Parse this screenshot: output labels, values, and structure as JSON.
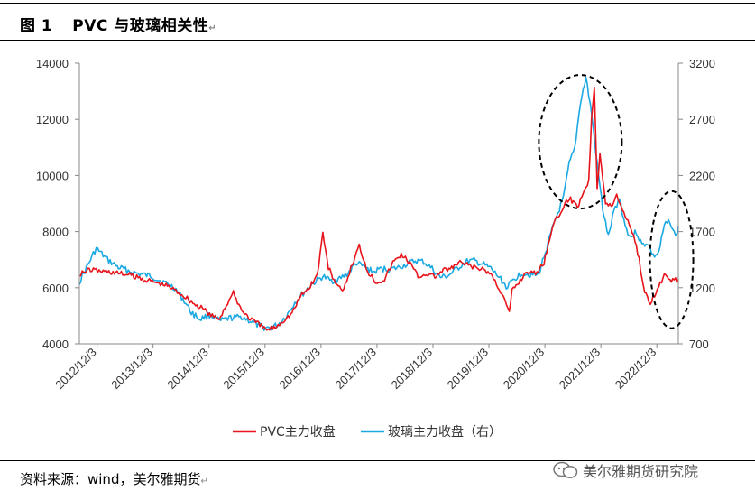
{
  "header": {
    "figure_label": "图 1",
    "title": "PVC 与玻璃相关性"
  },
  "footer": {
    "source": "资料来源：wind，美尔雅期货",
    "watermark": "美尔雅期货研究院"
  },
  "chart_data": {
    "type": "line",
    "title": "PVC 与玻璃相关性",
    "x_labels": [
      "2012/12/3",
      "2013/12/3",
      "2014/12/3",
      "2015/12/3",
      "2016/12/3",
      "2017/12/3",
      "2018/12/3",
      "2019/12/3",
      "2020/12/3",
      "2021/12/3",
      "2022/12/3"
    ],
    "x_range": [
      2012.6,
      2023.3
    ],
    "y_left": {
      "ticks": [
        4000,
        6000,
        8000,
        10000,
        12000,
        14000
      ],
      "range": [
        4000,
        14000
      ]
    },
    "y_right": {
      "ticks": [
        700,
        1200,
        1700,
        2200,
        2700,
        3200
      ],
      "range": [
        700,
        3200
      ]
    },
    "legend_position": "bottom",
    "colors": {
      "pvc": "#e8141b",
      "glass": "#1aa9e2"
    },
    "series": [
      {
        "name": "PVC主力收盘",
        "axis": "left",
        "x": [
          2012.6,
          2012.8,
          2012.95,
          2013.2,
          2013.5,
          2013.75,
          2013.95,
          2014.2,
          2014.4,
          2014.55,
          2014.7,
          2014.85,
          2014.95,
          2015.1,
          2015.2,
          2015.35,
          2015.5,
          2015.65,
          2015.8,
          2015.95,
          2016.1,
          2016.25,
          2016.4,
          2016.55,
          2016.7,
          2016.85,
          2016.95,
          2017.05,
          2017.15,
          2017.3,
          2017.45,
          2017.6,
          2017.75,
          2017.9,
          2018.05,
          2018.2,
          2018.35,
          2018.5,
          2018.65,
          2018.8,
          2018.95,
          2019.1,
          2019.25,
          2019.4,
          2019.55,
          2019.7,
          2019.85,
          2019.95,
          2020.15,
          2020.28,
          2020.33,
          2020.45,
          2020.6,
          2020.75,
          2020.9,
          2021.05,
          2021.2,
          2021.35,
          2021.5,
          2021.6,
          2021.7,
          2021.75,
          2021.8,
          2021.85,
          2021.9,
          2022.0,
          2022.1,
          2022.2,
          2022.3,
          2022.4,
          2022.5,
          2022.6,
          2022.7,
          2022.8,
          2022.95,
          2023.05,
          2023.15,
          2023.3
        ],
        "y": [
          6500,
          6650,
          6600,
          6550,
          6450,
          6300,
          6200,
          6050,
          5800,
          5600,
          5350,
          5200,
          5000,
          4900,
          5300,
          5800,
          5200,
          4900,
          4700,
          4500,
          4600,
          4850,
          5100,
          5700,
          6000,
          6450,
          7950,
          6700,
          6300,
          5800,
          6700,
          7500,
          6600,
          6200,
          6300,
          6900,
          7200,
          6900,
          6400,
          6500,
          6400,
          6600,
          6700,
          6900,
          6800,
          6700,
          6600,
          6500,
          5800,
          5100,
          5900,
          6200,
          6600,
          6500,
          6900,
          8200,
          8700,
          9200,
          8900,
          9400,
          9800,
          12100,
          13200,
          9600,
          10800,
          9000,
          8900,
          9300,
          8800,
          8400,
          7900,
          7000,
          5800,
          5500,
          6000,
          6500,
          6200,
          6300
        ]
      },
      {
        "name": "玻璃主力收盘（右）",
        "axis": "right",
        "x": [
          2012.6,
          2012.75,
          2012.9,
          2013.1,
          2013.3,
          2013.6,
          2013.9,
          2014.1,
          2014.3,
          2014.45,
          2014.6,
          2014.75,
          2014.95,
          2015.1,
          2015.3,
          2015.5,
          2015.7,
          2015.85,
          2016.0,
          2016.15,
          2016.3,
          2016.45,
          2016.6,
          2016.75,
          2016.95,
          2017.1,
          2017.25,
          2017.4,
          2017.55,
          2017.7,
          2017.85,
          2018.0,
          2018.15,
          2018.3,
          2018.45,
          2018.6,
          2018.75,
          2018.9,
          2019.05,
          2019.2,
          2019.35,
          2019.5,
          2019.65,
          2019.8,
          2019.95,
          2020.1,
          2020.25,
          2020.35,
          2020.5,
          2020.65,
          2020.8,
          2020.95,
          2021.1,
          2021.25,
          2021.35,
          2021.45,
          2021.55,
          2021.65,
          2021.75,
          2021.85,
          2021.95,
          2022.05,
          2022.15,
          2022.25,
          2022.35,
          2022.45,
          2022.55,
          2022.65,
          2022.75,
          2022.85,
          2022.95,
          2023.05,
          2023.15,
          2023.25,
          2023.3
        ],
        "y": [
          1250,
          1400,
          1550,
          1450,
          1380,
          1330,
          1300,
          1250,
          1200,
          1100,
          980,
          920,
          960,
          900,
          930,
          940,
          890,
          850,
          840,
          870,
          950,
          1070,
          1150,
          1230,
          1300,
          1260,
          1280,
          1330,
          1420,
          1380,
          1340,
          1370,
          1360,
          1380,
          1410,
          1440,
          1430,
          1370,
          1290,
          1310,
          1370,
          1430,
          1440,
          1410,
          1370,
          1290,
          1200,
          1270,
          1330,
          1320,
          1310,
          1560,
          1800,
          2000,
          2300,
          2440,
          2850,
          3070,
          2750,
          2300,
          1900,
          1650,
          1880,
          2000,
          1750,
          1650,
          1700,
          1580,
          1600,
          1480,
          1510,
          1750,
          1800,
          1650,
          1750
        ]
      }
    ]
  }
}
